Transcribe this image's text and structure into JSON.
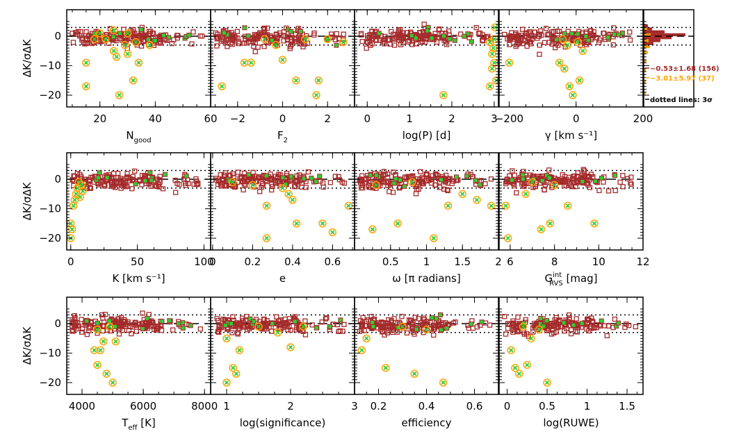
{
  "colors": {
    "red_series": "#a52a2a",
    "orange_series": "#ffa500",
    "green_series": "#32cd32",
    "reference_line": "#000000"
  },
  "common": {
    "ylabel": "ΔK/σΔK",
    "ylim": [
      -24,
      9
    ],
    "yticks": [
      0,
      -10,
      -20
    ],
    "sigma_lines": [
      3,
      -3
    ],
    "zero_line": 0
  },
  "chart_data": [
    {
      "type": "scatter",
      "xlabel": "N_good",
      "xlabel_base": "N",
      "xlabel_sub": "good",
      "xlim": [
        8,
        60
      ],
      "xticks": [
        20,
        40,
        60
      ],
      "xticklabels": [
        "20",
        "40",
        "60"
      ],
      "outliers": [
        [
          15,
          -9
        ],
        [
          15,
          -17
        ],
        [
          18,
          -1
        ],
        [
          22,
          -1
        ],
        [
          25,
          -5
        ],
        [
          26,
          -7
        ],
        [
          27,
          -20
        ],
        [
          29,
          -3
        ],
        [
          30,
          -6
        ],
        [
          32,
          -15
        ],
        [
          33,
          -2
        ],
        [
          34,
          -9
        ],
        [
          38,
          -3
        ],
        [
          20,
          1
        ],
        [
          25,
          2
        ],
        [
          30,
          1
        ]
      ]
    },
    {
      "type": "scatter",
      "xlabel": "F_2",
      "xlabel_base": "F",
      "xlabel_sub": "2",
      "xlim": [
        -3.2,
        3.2
      ],
      "xticks": [
        -2,
        0,
        2
      ],
      "xticklabels": [
        "−2",
        "0",
        "2"
      ],
      "outliers": [
        [
          -2.7,
          -17
        ],
        [
          -1.7,
          -9
        ],
        [
          -1.4,
          -9
        ],
        [
          -0.8,
          -1
        ],
        [
          -0.3,
          -3
        ],
        [
          0,
          -8
        ],
        [
          0.6,
          -15
        ],
        [
          1,
          -1
        ],
        [
          1.5,
          -20
        ],
        [
          1.6,
          -15
        ],
        [
          2,
          -1
        ],
        [
          2.7,
          -2
        ]
      ]
    },
    {
      "type": "scatter",
      "xlabel": "log(P) [d]",
      "xlim": [
        -0.3,
        3.1
      ],
      "xticks": [
        0,
        1,
        2,
        3
      ],
      "xticklabels": [
        "0",
        "1",
        "2",
        "3"
      ],
      "outliers": [
        [
          1.8,
          -20
        ],
        [
          2.9,
          -2
        ],
        [
          2.95,
          -6
        ],
        [
          3,
          -9
        ],
        [
          3.05,
          -15
        ],
        [
          2.9,
          -17
        ],
        [
          2.95,
          -11
        ],
        [
          3.0,
          -1
        ],
        [
          3.02,
          3
        ],
        [
          2.98,
          -4
        ]
      ]
    },
    {
      "type": "scatter",
      "xlabel": "γ [km s⁻¹]",
      "xlim": [
        -230,
        200
      ],
      "xticks": [
        -200,
        0,
        200
      ],
      "xticklabels": [
        "−200",
        "0",
        "200"
      ],
      "outliers": [
        [
          -200,
          -9
        ],
        [
          -50,
          -9
        ],
        [
          -35,
          -11
        ],
        [
          -20,
          -17
        ],
        [
          -10,
          -20
        ],
        [
          10,
          -15
        ],
        [
          -40,
          -1
        ],
        [
          -25,
          -3
        ],
        [
          5,
          -2
        ],
        [
          20,
          -5
        ]
      ]
    },
    {
      "type": "histogram",
      "annotations": [
        "−0.53±1.68 (156)",
        "−3.01±5.97 (37)",
        "dotted lines: 3σ"
      ]
    },
    {
      "type": "scatter",
      "xlabel": "K [km s⁻¹]",
      "xlim": [
        -3,
        105
      ],
      "xticks": [
        0,
        50,
        100
      ],
      "xticklabels": [
        "0",
        "50",
        "100"
      ],
      "outliers": [
        [
          0,
          -15
        ],
        [
          0,
          -20
        ],
        [
          1,
          -17
        ],
        [
          2,
          -9
        ],
        [
          3,
          -7
        ],
        [
          4,
          -5
        ],
        [
          5,
          -3
        ],
        [
          6,
          -1
        ],
        [
          7,
          -6
        ],
        [
          8,
          -2
        ],
        [
          9,
          -4
        ]
      ]
    },
    {
      "type": "scatter",
      "xlabel": "e",
      "xlim": [
        -0.01,
        0.71
      ],
      "xticks": [
        0,
        0.2,
        0.4,
        0.6
      ],
      "xticklabels": [
        "0",
        "0.2",
        "0.4",
        "0.6"
      ],
      "outliers": [
        [
          0.27,
          -9
        ],
        [
          0.27,
          -20
        ],
        [
          0.35,
          -3
        ],
        [
          0.38,
          -5
        ],
        [
          0.4,
          -7
        ],
        [
          0.42,
          -15
        ],
        [
          0.55,
          -15
        ],
        [
          0.6,
          -18
        ],
        [
          0.68,
          -9
        ],
        [
          0.1,
          -1
        ],
        [
          0.2,
          -2
        ]
      ]
    },
    {
      "type": "scatter",
      "xlabel": "ω [π radians]",
      "xlim": [
        0,
        2
      ],
      "xticks": [
        0.5,
        1,
        1.5,
        2
      ],
      "xticklabels": [
        "0.5",
        "1",
        "1.5",
        "2"
      ],
      "outliers": [
        [
          0.25,
          -17
        ],
        [
          0.6,
          -15
        ],
        [
          1.1,
          -20
        ],
        [
          1.3,
          -9
        ],
        [
          1.5,
          -5
        ],
        [
          1.7,
          -7
        ],
        [
          0.8,
          -1
        ],
        [
          1.9,
          -9
        ],
        [
          0.3,
          -2
        ]
      ]
    },
    {
      "type": "scatter",
      "xlabel": "G_RVS^int [mag]",
      "xlabel_base": "G",
      "xlabel_sub": "RVS",
      "xlabel_sup": "int",
      "xlabel_unit": "[mag]",
      "xlim": [
        5.5,
        12
      ],
      "xticks": [
        6,
        8,
        10,
        12
      ],
      "xticklabels": [
        "6",
        "8",
        "10",
        "12"
      ],
      "outliers": [
        [
          5.8,
          -9
        ],
        [
          5.9,
          -20
        ],
        [
          7.4,
          -17
        ],
        [
          7.8,
          -15
        ],
        [
          8.6,
          -9
        ],
        [
          9.8,
          -15
        ],
        [
          7,
          -1
        ],
        [
          8,
          -2
        ],
        [
          6.7,
          -5
        ]
      ]
    },
    {
      "type": "scatter",
      "xlabel": "T_eff [K]",
      "xlabel_base": "T",
      "xlabel_sub": "eff",
      "xlabel_unit": "[K]",
      "xlim": [
        3500,
        8200
      ],
      "xticks": [
        4000,
        6000,
        8000
      ],
      "xticklabels": [
        "4000",
        "6000",
        "8000"
      ],
      "outliers": [
        [
          4400,
          -9
        ],
        [
          4500,
          -14
        ],
        [
          4800,
          -17
        ],
        [
          5000,
          -20
        ],
        [
          4600,
          -9
        ],
        [
          4700,
          -6
        ],
        [
          5100,
          -6
        ],
        [
          4900,
          -1
        ],
        [
          4500,
          -2
        ]
      ]
    },
    {
      "type": "scatter",
      "xlabel": "log(significance)",
      "xlim": [
        0.75,
        3
      ],
      "xticks": [
        1,
        2,
        3
      ],
      "xticklabels": [
        "1",
        "2",
        "3"
      ],
      "outliers": [
        [
          1.0,
          -20
        ],
        [
          1.1,
          -15
        ],
        [
          1.15,
          -17
        ],
        [
          1.2,
          -9
        ],
        [
          1.0,
          -5
        ],
        [
          1.8,
          -3
        ],
        [
          2.0,
          -8
        ],
        [
          1.5,
          -1
        ],
        [
          2.2,
          -1
        ]
      ]
    },
    {
      "type": "scatter",
      "xlabel": "efficiency",
      "xlim": [
        0.1,
        0.7
      ],
      "xticks": [
        0.2,
        0.4,
        0.6
      ],
      "xticklabels": [
        "0.2",
        "0.4",
        "0.6"
      ],
      "outliers": [
        [
          0.13,
          -9
        ],
        [
          0.15,
          -5
        ],
        [
          0.23,
          -15
        ],
        [
          0.35,
          -17
        ],
        [
          0.47,
          -20
        ],
        [
          0.3,
          -1
        ],
        [
          0.4,
          -2
        ]
      ]
    },
    {
      "type": "scatter",
      "xlabel": "log(RUWE)",
      "xlim": [
        -0.1,
        1.7
      ],
      "xticks": [
        0,
        0.5,
        1,
        1.5
      ],
      "xticklabels": [
        "0",
        "0.5",
        "1",
        "1.5"
      ],
      "outliers": [
        [
          0.05,
          -9
        ],
        [
          0.1,
          -15
        ],
        [
          0.15,
          -17
        ],
        [
          0.25,
          -14
        ],
        [
          0.3,
          -5
        ],
        [
          0.5,
          -20
        ],
        [
          0.4,
          -2
        ],
        [
          0.2,
          -1
        ]
      ]
    }
  ]
}
